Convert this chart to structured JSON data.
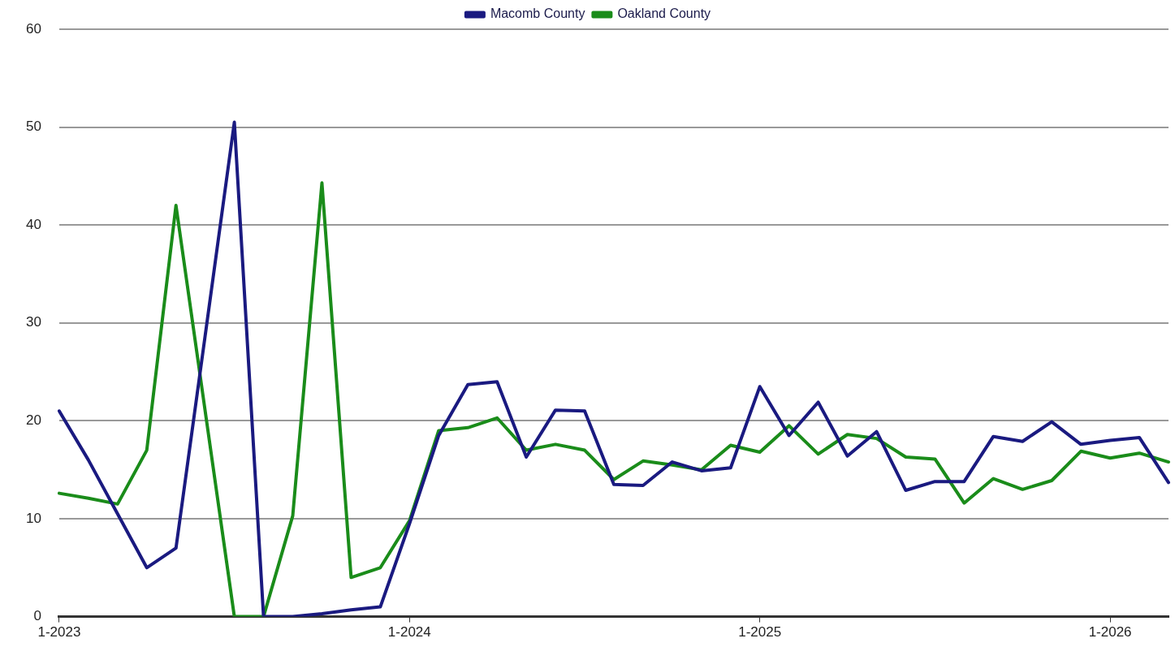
{
  "chart_data": {
    "type": "line",
    "categories": [
      "1-2023",
      null,
      null,
      null,
      null,
      null,
      null,
      null,
      null,
      null,
      null,
      null,
      "1-2024",
      null,
      null,
      null,
      null,
      null,
      null,
      null,
      null,
      null,
      null,
      null,
      "1-2025",
      null,
      null,
      null,
      null,
      null,
      null,
      null,
      null,
      null,
      null,
      null,
      "1-2026",
      null,
      null
    ],
    "series": [
      {
        "name": "Macomb County",
        "color": "#1a1a80",
        "values": [
          21,
          16,
          10.5,
          5,
          7,
          28.7,
          50.5,
          0,
          0,
          0.3,
          0.7,
          1,
          9.5,
          18.5,
          23.7,
          24,
          16.3,
          21.1,
          21,
          13.5,
          13.4,
          15.8,
          14.9,
          15.2,
          23.5,
          18.5,
          21.9,
          16.4,
          18.9,
          12.9,
          13.8,
          13.8,
          18.4,
          17.9,
          19.9,
          17.6,
          18,
          18.3,
          13.7
        ]
      },
      {
        "name": "Oakland County",
        "color": "#1a8c1a",
        "values": [
          12.6,
          12.1,
          11.5,
          17,
          42,
          21,
          0,
          0,
          10.3,
          44.3,
          4,
          5,
          9.8,
          19,
          19.3,
          20.3,
          17,
          17.6,
          17,
          14,
          15.9,
          15.5,
          15,
          17.5,
          16.8,
          19.5,
          16.6,
          18.6,
          18.2,
          16.3,
          16.1,
          11.6,
          14.1,
          13,
          13.9,
          16.9,
          16.2,
          16.7,
          15.8
        ]
      }
    ],
    "ylim": [
      0,
      60
    ],
    "yticks": [
      0,
      10,
      20,
      30,
      40,
      50,
      60
    ],
    "grid": "y",
    "legend": "top",
    "marker": "none",
    "line_style": "solid"
  }
}
